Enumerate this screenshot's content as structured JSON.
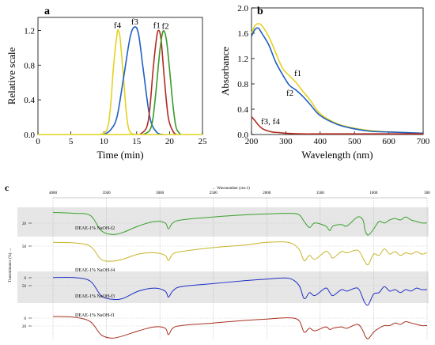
{
  "chart_data": [
    {
      "panel": "a",
      "type": "line",
      "xlabel": "Time (min)",
      "ylabel": "Relative scale",
      "xlim": [
        0,
        25
      ],
      "ylim": [
        0,
        1.35
      ],
      "xticks": [
        "0",
        "5",
        "10",
        "15",
        "20",
        "25"
      ],
      "yticks": [
        "0.0",
        "0.4",
        "0.8",
        "1.2"
      ],
      "grid": false,
      "series": [
        {
          "name": "f4",
          "color": "#e3d21f",
          "x": [
            9.5,
            10.5,
            11.0,
            11.5,
            12.0,
            12.2,
            12.5,
            13.0,
            13.5,
            14.0,
            15.0
          ],
          "y": [
            0,
            0.06,
            0.3,
            0.8,
            1.15,
            1.2,
            1.1,
            0.65,
            0.2,
            0.03,
            0
          ]
        },
        {
          "name": "f3",
          "color": "#1f5fc4",
          "x": [
            10.0,
            11.0,
            12.0,
            13.0,
            14.0,
            14.7,
            15.3,
            16.0,
            17.0,
            18.0,
            19.0
          ],
          "y": [
            0,
            0.05,
            0.2,
            0.65,
            1.12,
            1.24,
            1.15,
            0.75,
            0.2,
            0.03,
            0
          ]
        },
        {
          "name": "f1",
          "color": "#b22a1f",
          "x": [
            15.5,
            16.5,
            17.0,
            17.5,
            18.0,
            18.3,
            18.7,
            19.2,
            19.8,
            20.5,
            21.0
          ],
          "y": [
            0,
            0.08,
            0.3,
            0.75,
            1.1,
            1.2,
            1.1,
            0.65,
            0.2,
            0.04,
            0
          ]
        },
        {
          "name": "f2",
          "color": "#3a9a2c",
          "x": [
            16.0,
            17.0,
            17.5,
            18.0,
            18.5,
            19.0,
            19.5,
            20.0,
            20.5,
            21.0,
            21.7
          ],
          "y": [
            0,
            0.05,
            0.2,
            0.55,
            0.95,
            1.19,
            1.1,
            0.75,
            0.35,
            0.08,
            0
          ]
        }
      ]
    },
    {
      "panel": "b",
      "type": "line",
      "xlabel": "Wavelength (nm)",
      "ylabel": "Absorbance",
      "xlim": [
        200,
        700
      ],
      "ylim": [
        0,
        2.0
      ],
      "xticks": [
        "200",
        "300",
        "400",
        "500",
        "600",
        "700"
      ],
      "yticks": [
        "0.0",
        "0.4",
        "0.8",
        "1.2",
        "1.6",
        "2.0"
      ],
      "grid": false,
      "annotations": [
        "f1",
        "f2",
        "f3, f4"
      ],
      "series": [
        {
          "name": "f1",
          "color": "#e3d21f",
          "x": [
            200,
            210,
            220,
            230,
            250,
            270,
            290,
            310,
            330,
            350,
            370,
            400,
            450,
            500,
            550,
            600,
            650,
            700
          ],
          "y": [
            1.6,
            1.72,
            1.75,
            1.72,
            1.55,
            1.3,
            1.05,
            0.93,
            0.82,
            0.68,
            0.55,
            0.33,
            0.17,
            0.1,
            0.06,
            0.04,
            0.03,
            0.02
          ]
        },
        {
          "name": "f2",
          "color": "#1f5fc4",
          "x": [
            200,
            210,
            220,
            230,
            250,
            270,
            290,
            310,
            330,
            350,
            370,
            400,
            450,
            500,
            550,
            600,
            650,
            700
          ],
          "y": [
            1.55,
            1.66,
            1.68,
            1.6,
            1.42,
            1.15,
            0.95,
            0.78,
            0.7,
            0.6,
            0.48,
            0.3,
            0.16,
            0.09,
            0.05,
            0.04,
            0.03,
            0.02
          ]
        },
        {
          "name": "f3, f4",
          "color": "#b22a1f",
          "x": [
            200,
            210,
            220,
            230,
            240,
            260,
            280,
            300,
            350,
            400,
            500,
            600,
            700
          ],
          "y": [
            0.28,
            0.22,
            0.15,
            0.1,
            0.07,
            0.04,
            0.03,
            0.02,
            0.01,
            0.01,
            0.01,
            0.01,
            0.01
          ]
        }
      ]
    },
    {
      "panel": "c",
      "type": "line",
      "xlabel": "Wavenumber (cm-1)",
      "xlabel_prefix": "←",
      "ylabel": "Transmittance (%) →",
      "xlim": [
        4000,
        500
      ],
      "xticks": [
        "4000",
        "3500",
        "3000",
        "2500",
        "2000",
        "1500",
        "1000",
        "500"
      ],
      "grid": true,
      "series": [
        {
          "name": "DEAE-1% NaOH-f2",
          "color": "#3aa02c",
          "axis_ticks": [
            "20"
          ],
          "x": [
            4000,
            3800,
            3650,
            3550,
            3450,
            3350,
            3200,
            3050,
            2950,
            2920,
            2880,
            2800,
            2500,
            2200,
            2000,
            1800,
            1700,
            1650,
            1600,
            1550,
            1450,
            1410,
            1380,
            1300,
            1250,
            1150,
            1100,
            1080,
            1050,
            1000,
            950,
            900,
            850,
            800,
            750,
            700,
            650,
            600,
            550,
            500
          ],
          "y": [
            0.25,
            0.28,
            0.35,
            0.85,
            0.98,
            0.92,
            0.7,
            0.55,
            0.6,
            0.8,
            0.6,
            0.5,
            0.4,
            0.33,
            0.3,
            0.28,
            0.32,
            0.55,
            0.75,
            0.6,
            0.7,
            0.85,
            0.7,
            0.65,
            0.7,
            0.4,
            0.5,
            0.85,
            1.0,
            0.8,
            0.55,
            0.6,
            0.5,
            0.45,
            0.5,
            0.4,
            0.5,
            0.55,
            0.6,
            0.6
          ]
        },
        {
          "name": "DEAE-1% NaOH-f4",
          "color": "#c8b42a",
          "axis_ticks": [
            "50"
          ],
          "x": [
            4000,
            3800,
            3650,
            3550,
            3450,
            3350,
            3200,
            3050,
            2950,
            2920,
            2880,
            2800,
            2500,
            2200,
            2000,
            1800,
            1700,
            1650,
            1600,
            1550,
            1450,
            1410,
            1380,
            1300,
            1250,
            1150,
            1100,
            1080,
            1050,
            1000,
            950,
            900,
            850,
            800,
            750,
            700,
            650,
            600,
            550,
            500
          ],
          "y": [
            0.1,
            0.12,
            0.25,
            0.75,
            0.82,
            0.75,
            0.55,
            0.5,
            0.6,
            0.8,
            0.55,
            0.45,
            0.3,
            0.2,
            0.1,
            0.1,
            0.35,
            0.8,
            0.6,
            0.75,
            0.45,
            0.55,
            0.7,
            0.45,
            0.5,
            0.4,
            0.7,
            0.85,
            0.95,
            0.55,
            0.6,
            0.35,
            0.55,
            0.45,
            0.6,
            0.5,
            0.55,
            0.45,
            0.55,
            0.5
          ]
        },
        {
          "name": "DEAE-1% NaOH-f3",
          "color": "#1f2fc4",
          "axis_ticks": [
            "0",
            "50"
          ],
          "x": [
            4000,
            3800,
            3650,
            3550,
            3450,
            3350,
            3200,
            3050,
            2950,
            2920,
            2880,
            2800,
            2500,
            2200,
            2000,
            1800,
            1700,
            1650,
            1600,
            1550,
            1450,
            1410,
            1380,
            1300,
            1250,
            1150,
            1100,
            1080,
            1050,
            1000,
            950,
            900,
            850,
            800,
            750,
            700,
            650,
            600,
            550,
            500
          ],
          "y": [
            0.1,
            0.1,
            0.22,
            0.7,
            0.82,
            0.8,
            0.55,
            0.45,
            0.55,
            0.75,
            0.55,
            0.4,
            0.3,
            0.2,
            0.15,
            0.12,
            0.35,
            0.8,
            0.6,
            0.7,
            0.45,
            0.6,
            0.7,
            0.5,
            0.55,
            0.45,
            0.8,
            0.95,
            1.0,
            0.65,
            0.6,
            0.4,
            0.55,
            0.5,
            0.6,
            0.5,
            0.55,
            0.45,
            0.5,
            0.5
          ]
        },
        {
          "name": "DEAE-1% NaOH-f1",
          "color": "#a8301f",
          "axis_ticks": [
            "0",
            "20"
          ],
          "x": [
            4000,
            3800,
            3650,
            3550,
            3450,
            3350,
            3200,
            3050,
            2950,
            2920,
            2880,
            2800,
            2500,
            2200,
            2000,
            1800,
            1700,
            1650,
            1600,
            1550,
            1450,
            1410,
            1380,
            1300,
            1250,
            1150,
            1100,
            1080,
            1050,
            1000,
            950,
            900,
            850,
            800,
            750,
            700,
            650,
            600,
            550,
            500
          ],
          "y": [
            0.15,
            0.18,
            0.35,
            0.85,
            0.98,
            0.9,
            0.7,
            0.55,
            0.6,
            0.85,
            0.6,
            0.5,
            0.4,
            0.3,
            0.25,
            0.2,
            0.3,
            0.75,
            0.6,
            0.7,
            0.55,
            0.65,
            0.6,
            0.55,
            0.6,
            0.45,
            0.7,
            0.9,
            1.0,
            0.75,
            0.6,
            0.5,
            0.5,
            0.4,
            0.45,
            0.35,
            0.4,
            0.45,
            0.5,
            0.5
          ]
        }
      ]
    }
  ],
  "labels": {
    "a": "a",
    "b": "b",
    "c": "c"
  }
}
